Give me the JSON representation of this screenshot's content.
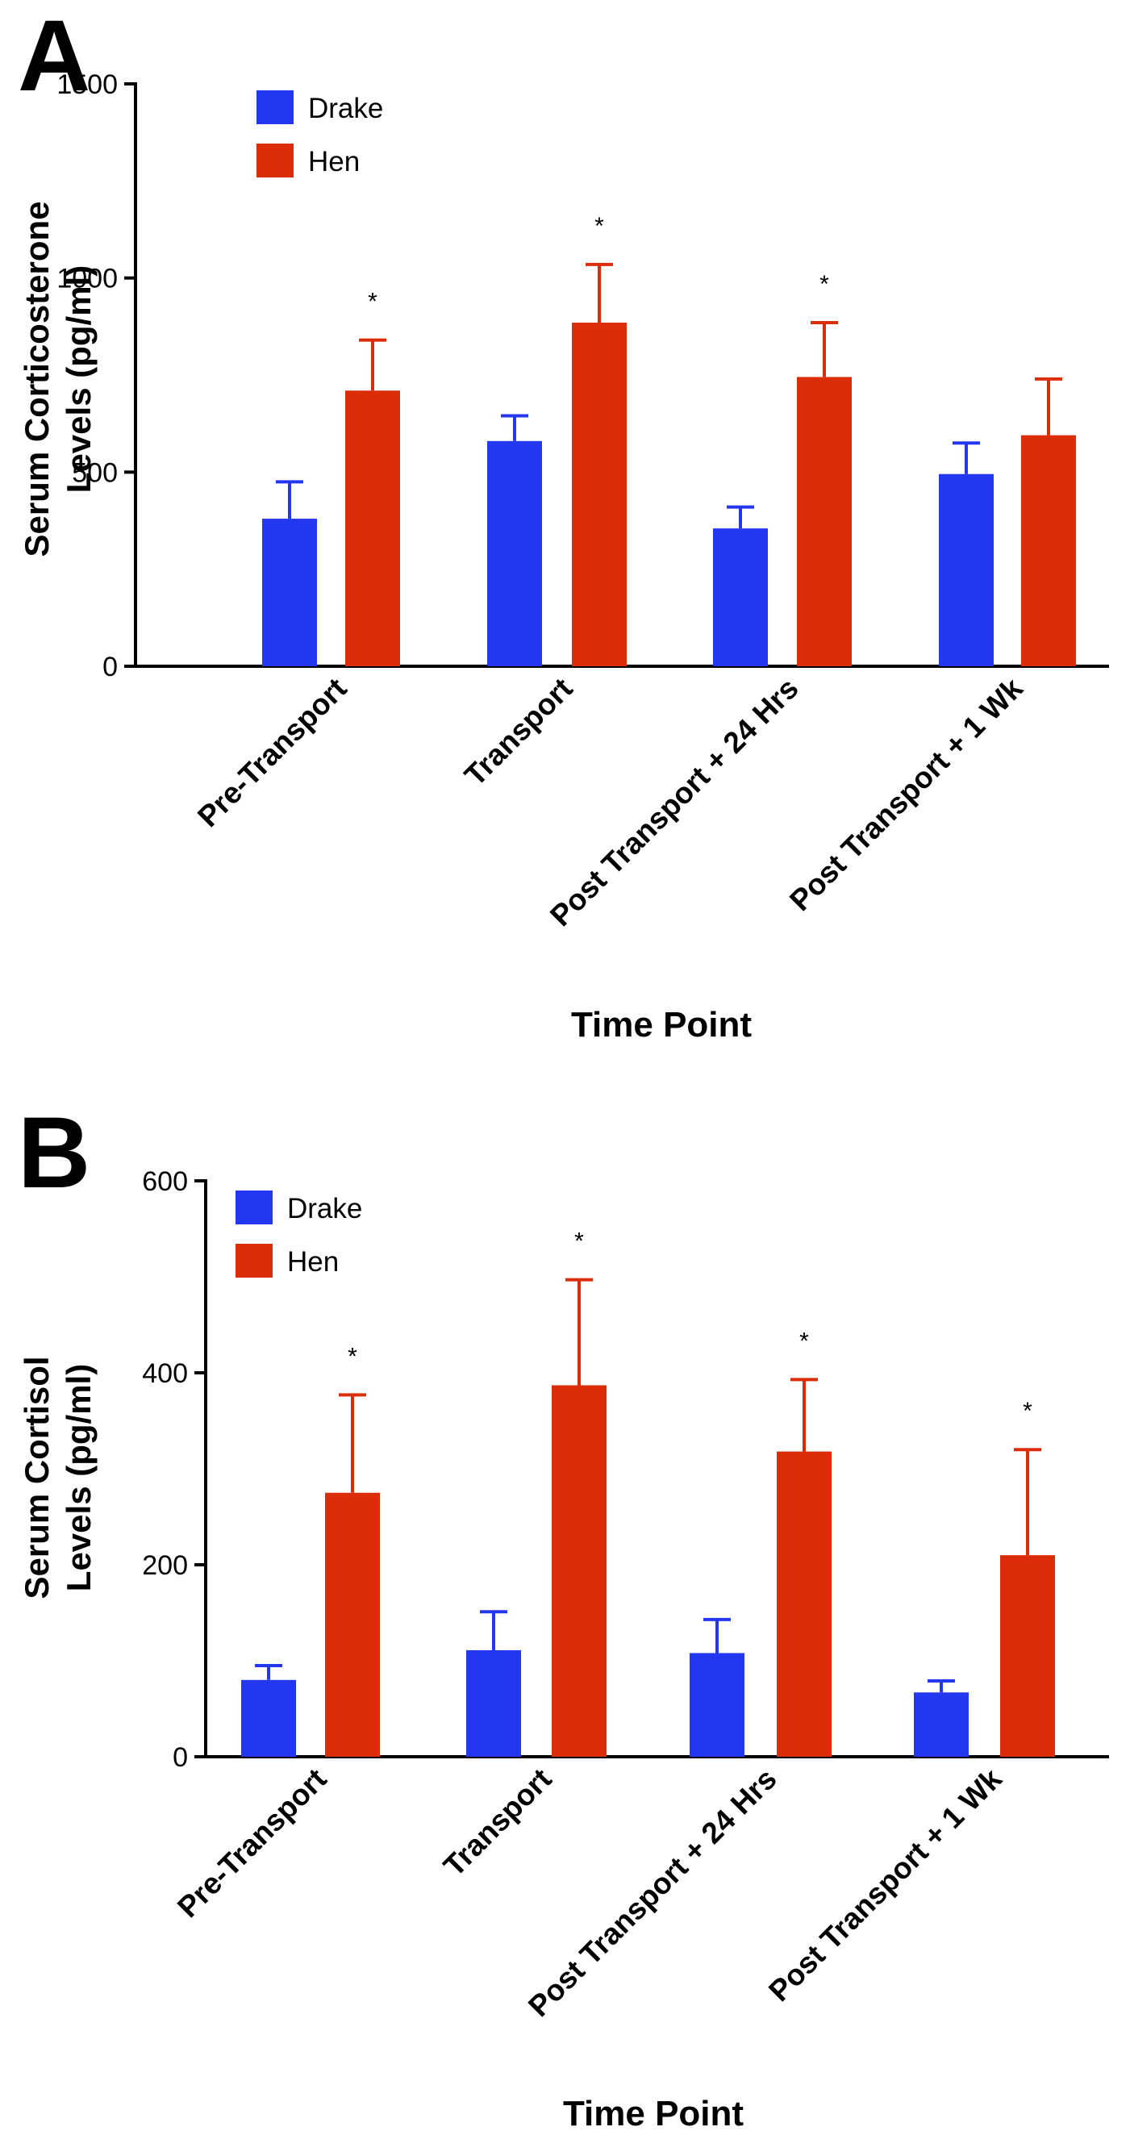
{
  "colors": {
    "drake": "#2437f0",
    "hen": "#dc2d0a",
    "axis": "#000000"
  },
  "chart_data": [
    {
      "type": "bar",
      "panel_label": "A",
      "ylabel_line1": "Serum Corticosterone",
      "ylabel_line2": "Levels (pg/ml)",
      "xlabel": "Time Point",
      "ylim": [
        0,
        1500
      ],
      "yticks": [
        "0",
        "500",
        "1000",
        "1500"
      ],
      "ytick_values": [
        0,
        500,
        1000,
        1500
      ],
      "categories": [
        "Pre-Transport",
        "Transport",
        "Post Transport + 24 Hrs",
        "Post Transport + 1 Wk"
      ],
      "legend": [
        "Drake",
        "Hen"
      ],
      "series": [
        {
          "name": "Drake",
          "values": [
            380,
            580,
            355,
            495
          ],
          "errors": [
            95,
            65,
            55,
            80
          ]
        },
        {
          "name": "Hen",
          "values": [
            710,
            885,
            745,
            595
          ],
          "errors": [
            130,
            150,
            140,
            145
          ]
        }
      ],
      "significance": [
        "*",
        "*",
        "*",
        ""
      ]
    },
    {
      "type": "bar",
      "panel_label": "B",
      "ylabel_line1": "Serum Cortisol",
      "ylabel_line2": "Levels (pg/ml)",
      "xlabel": "Time Point",
      "ylim": [
        0,
        600
      ],
      "yticks": [
        "0",
        "200",
        "400",
        "600"
      ],
      "ytick_values": [
        0,
        200,
        400,
        600
      ],
      "categories": [
        "Pre-Transport",
        "Transport",
        "Post Transport + 24 Hrs",
        "Post Transport + 1 Wk"
      ],
      "legend": [
        "Drake",
        "Hen"
      ],
      "series": [
        {
          "name": "Drake",
          "values": [
            80,
            111,
            108,
            67
          ],
          "errors": [
            15,
            40,
            35,
            12
          ]
        },
        {
          "name": "Hen",
          "values": [
            275,
            387,
            318,
            210
          ],
          "errors": [
            102,
            110,
            75,
            110
          ]
        }
      ],
      "significance": [
        "*",
        "*",
        "*",
        "*"
      ]
    }
  ]
}
